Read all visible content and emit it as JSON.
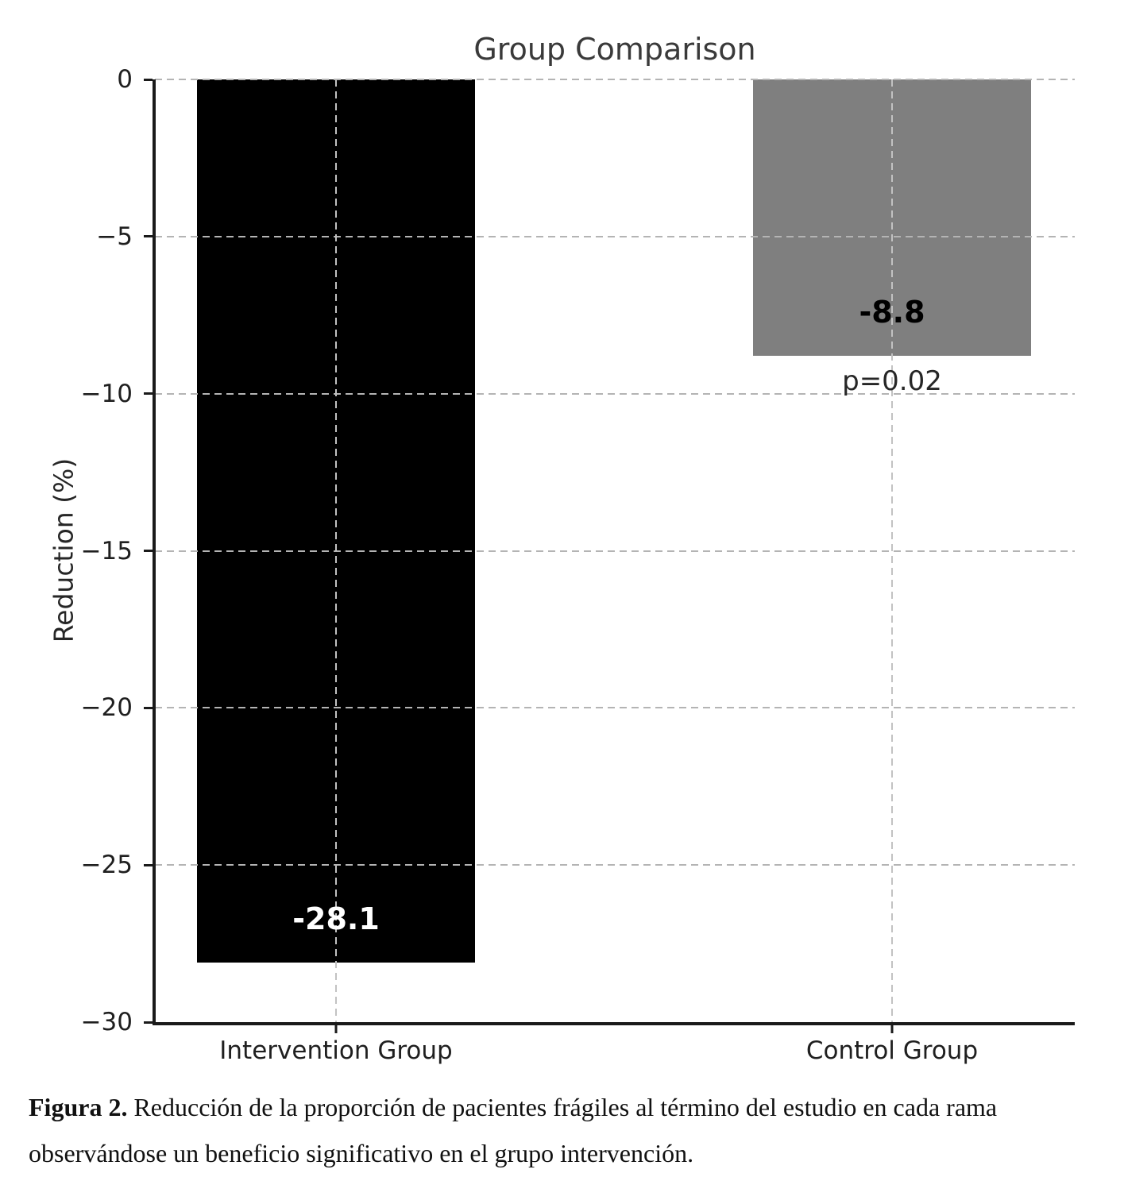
{
  "chart_data": {
    "type": "bar",
    "title": "Group Comparison",
    "ylabel": "Reduction (%)",
    "xlabel": "",
    "categories": [
      "Intervention Group",
      "Control Group"
    ],
    "values": [
      -28.1,
      -8.8
    ],
    "bar_labels": [
      "-28.1",
      "-8.8"
    ],
    "bar_colors": [
      "#000000",
      "#7f7f7f"
    ],
    "bar_label_colors": [
      "#ffffff",
      "#000000"
    ],
    "annotation": "p=0.02",
    "annotation_under_category": "Control Group",
    "ylim": [
      -30,
      0
    ],
    "yticks": [
      {
        "value": 0,
        "label": "0"
      },
      {
        "value": -5,
        "label": "−5"
      },
      {
        "value": -10,
        "label": "−10"
      },
      {
        "value": -15,
        "label": "−15"
      },
      {
        "value": -20,
        "label": "−20"
      },
      {
        "value": -25,
        "label": "−25"
      },
      {
        "value": -30,
        "label": "−30"
      }
    ],
    "grid": {
      "style": "dashed",
      "color": "#b4b4b4",
      "horizontal": true,
      "vertical_at_categories": true
    },
    "legend": "none"
  },
  "caption": {
    "prefix": "Figura 2.",
    "body": "Reducción de la proporción de pacientes frágiles al término del estudio en cada rama observándose un beneficio significativo en el grupo intervención."
  }
}
